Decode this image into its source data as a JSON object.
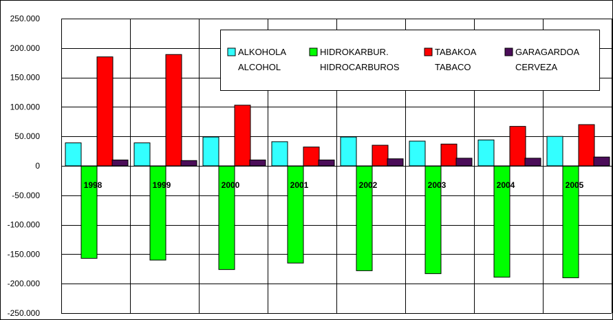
{
  "chart_data": {
    "type": "bar",
    "title": "",
    "xlabel": "",
    "ylabel": "",
    "categories": [
      "1998",
      "1999",
      "2000",
      "2001",
      "2002",
      "2003",
      "2004",
      "2005"
    ],
    "series": [
      {
        "name": "ALKOHOLA ALCOHOL",
        "label_lines": [
          "ALKOHOLA",
          "ALCOHOL"
        ],
        "color": "#33ffff",
        "values": [
          39000,
          39000,
          49000,
          41000,
          49000,
          42000,
          44000,
          50000
        ]
      },
      {
        "name": "HIDROKARBUR. HIDROCARBUROS",
        "label_lines": [
          "HIDROKARBUR.",
          "HIDROCARBUROS"
        ],
        "color": "#00ff00",
        "values": [
          -157000,
          -160000,
          -176000,
          -165000,
          -178000,
          -183000,
          -189000,
          -190000
        ]
      },
      {
        "name": "TABAKOA TABACO",
        "label_lines": [
          "TABAKOA",
          "TABACO"
        ],
        "color": "#ff0000",
        "values": [
          185000,
          189000,
          103000,
          32000,
          35000,
          37000,
          67000,
          70000
        ]
      },
      {
        "name": "GARAGARDOA CERVEZA",
        "label_lines": [
          "GARAGARDOA",
          "CERVEZA"
        ],
        "color": "#4b0d59",
        "values": [
          10000,
          9000,
          10000,
          10000,
          12000,
          13000,
          13000,
          15000
        ]
      }
    ],
    "ylim": [
      -250000,
      250000
    ],
    "yticks": [
      250000,
      200000,
      150000,
      100000,
      50000,
      0,
      -50000,
      -100000,
      -150000,
      -200000,
      -250000
    ],
    "ytick_labels": [
      "250.000",
      "200.000",
      "150.000",
      "100.000",
      "50.000",
      "0",
      "-50.000",
      "-100.000",
      "-150.000",
      "-200.000",
      "-250.000"
    ],
    "grid": true,
    "legend_position": "top-right"
  }
}
